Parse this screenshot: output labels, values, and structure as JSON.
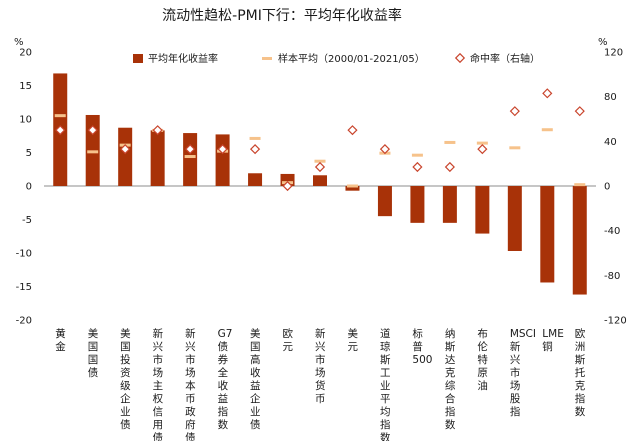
{
  "chart_data": {
    "type": "bar",
    "title": "流动性趋松-PMI下行：平均年化收益率",
    "y_left_unit": "%",
    "y_right_unit": "%",
    "ylim_left": [
      -20,
      20
    ],
    "yticks_left": [
      "20",
      "15",
      "10",
      "5",
      "0",
      "-5",
      "-10",
      "-15",
      "-20"
    ],
    "ylim_right": [
      -120,
      120
    ],
    "yticks_right": [
      "120",
      "80",
      "40",
      "0",
      "-40",
      "-80",
      "-120"
    ],
    "legend_position": "top",
    "categories": [
      "黄金",
      "美国国债",
      "美国投资级企业债",
      "新兴市场主权信用债",
      "新兴市场本币政府债",
      "G7债券全收益指数",
      "美国高收益企业债",
      "欧元",
      "新兴市场货币",
      "美元",
      "道琼斯工业平均指数",
      "标普500",
      "纳斯达克综合指数",
      "布伦特原油",
      "MSCI新兴市场股指",
      "LME铜",
      "欧洲斯托克指数"
    ],
    "series": [
      {
        "name": "平均年化收益率",
        "kind": "bar",
        "axis": "left",
        "color": "#a83208",
        "values": [
          16.8,
          10.6,
          8.7,
          8.3,
          7.9,
          7.7,
          1.9,
          1.8,
          1.6,
          -0.7,
          -4.5,
          -5.5,
          -5.5,
          -7.1,
          -9.7,
          -14.4,
          -16.2
        ]
      },
      {
        "name": "样本平均（2000/01-2021/05）",
        "kind": "dash",
        "axis": "left",
        "color": "#f6c28b",
        "values": [
          10.5,
          5.1,
          6.1,
          8.3,
          4.4,
          5.2,
          7.1,
          0.5,
          3.7,
          0.0,
          4.9,
          4.6,
          6.5,
          6.4,
          5.7,
          8.4,
          0.2
        ]
      },
      {
        "name": "命中率（右轴）",
        "kind": "marker",
        "axis": "right",
        "color": "#c9452d",
        "values": [
          50,
          50,
          33,
          50,
          33,
          33,
          33,
          0,
          17,
          50,
          33,
          17,
          17,
          33,
          67,
          83,
          67
        ]
      }
    ]
  }
}
